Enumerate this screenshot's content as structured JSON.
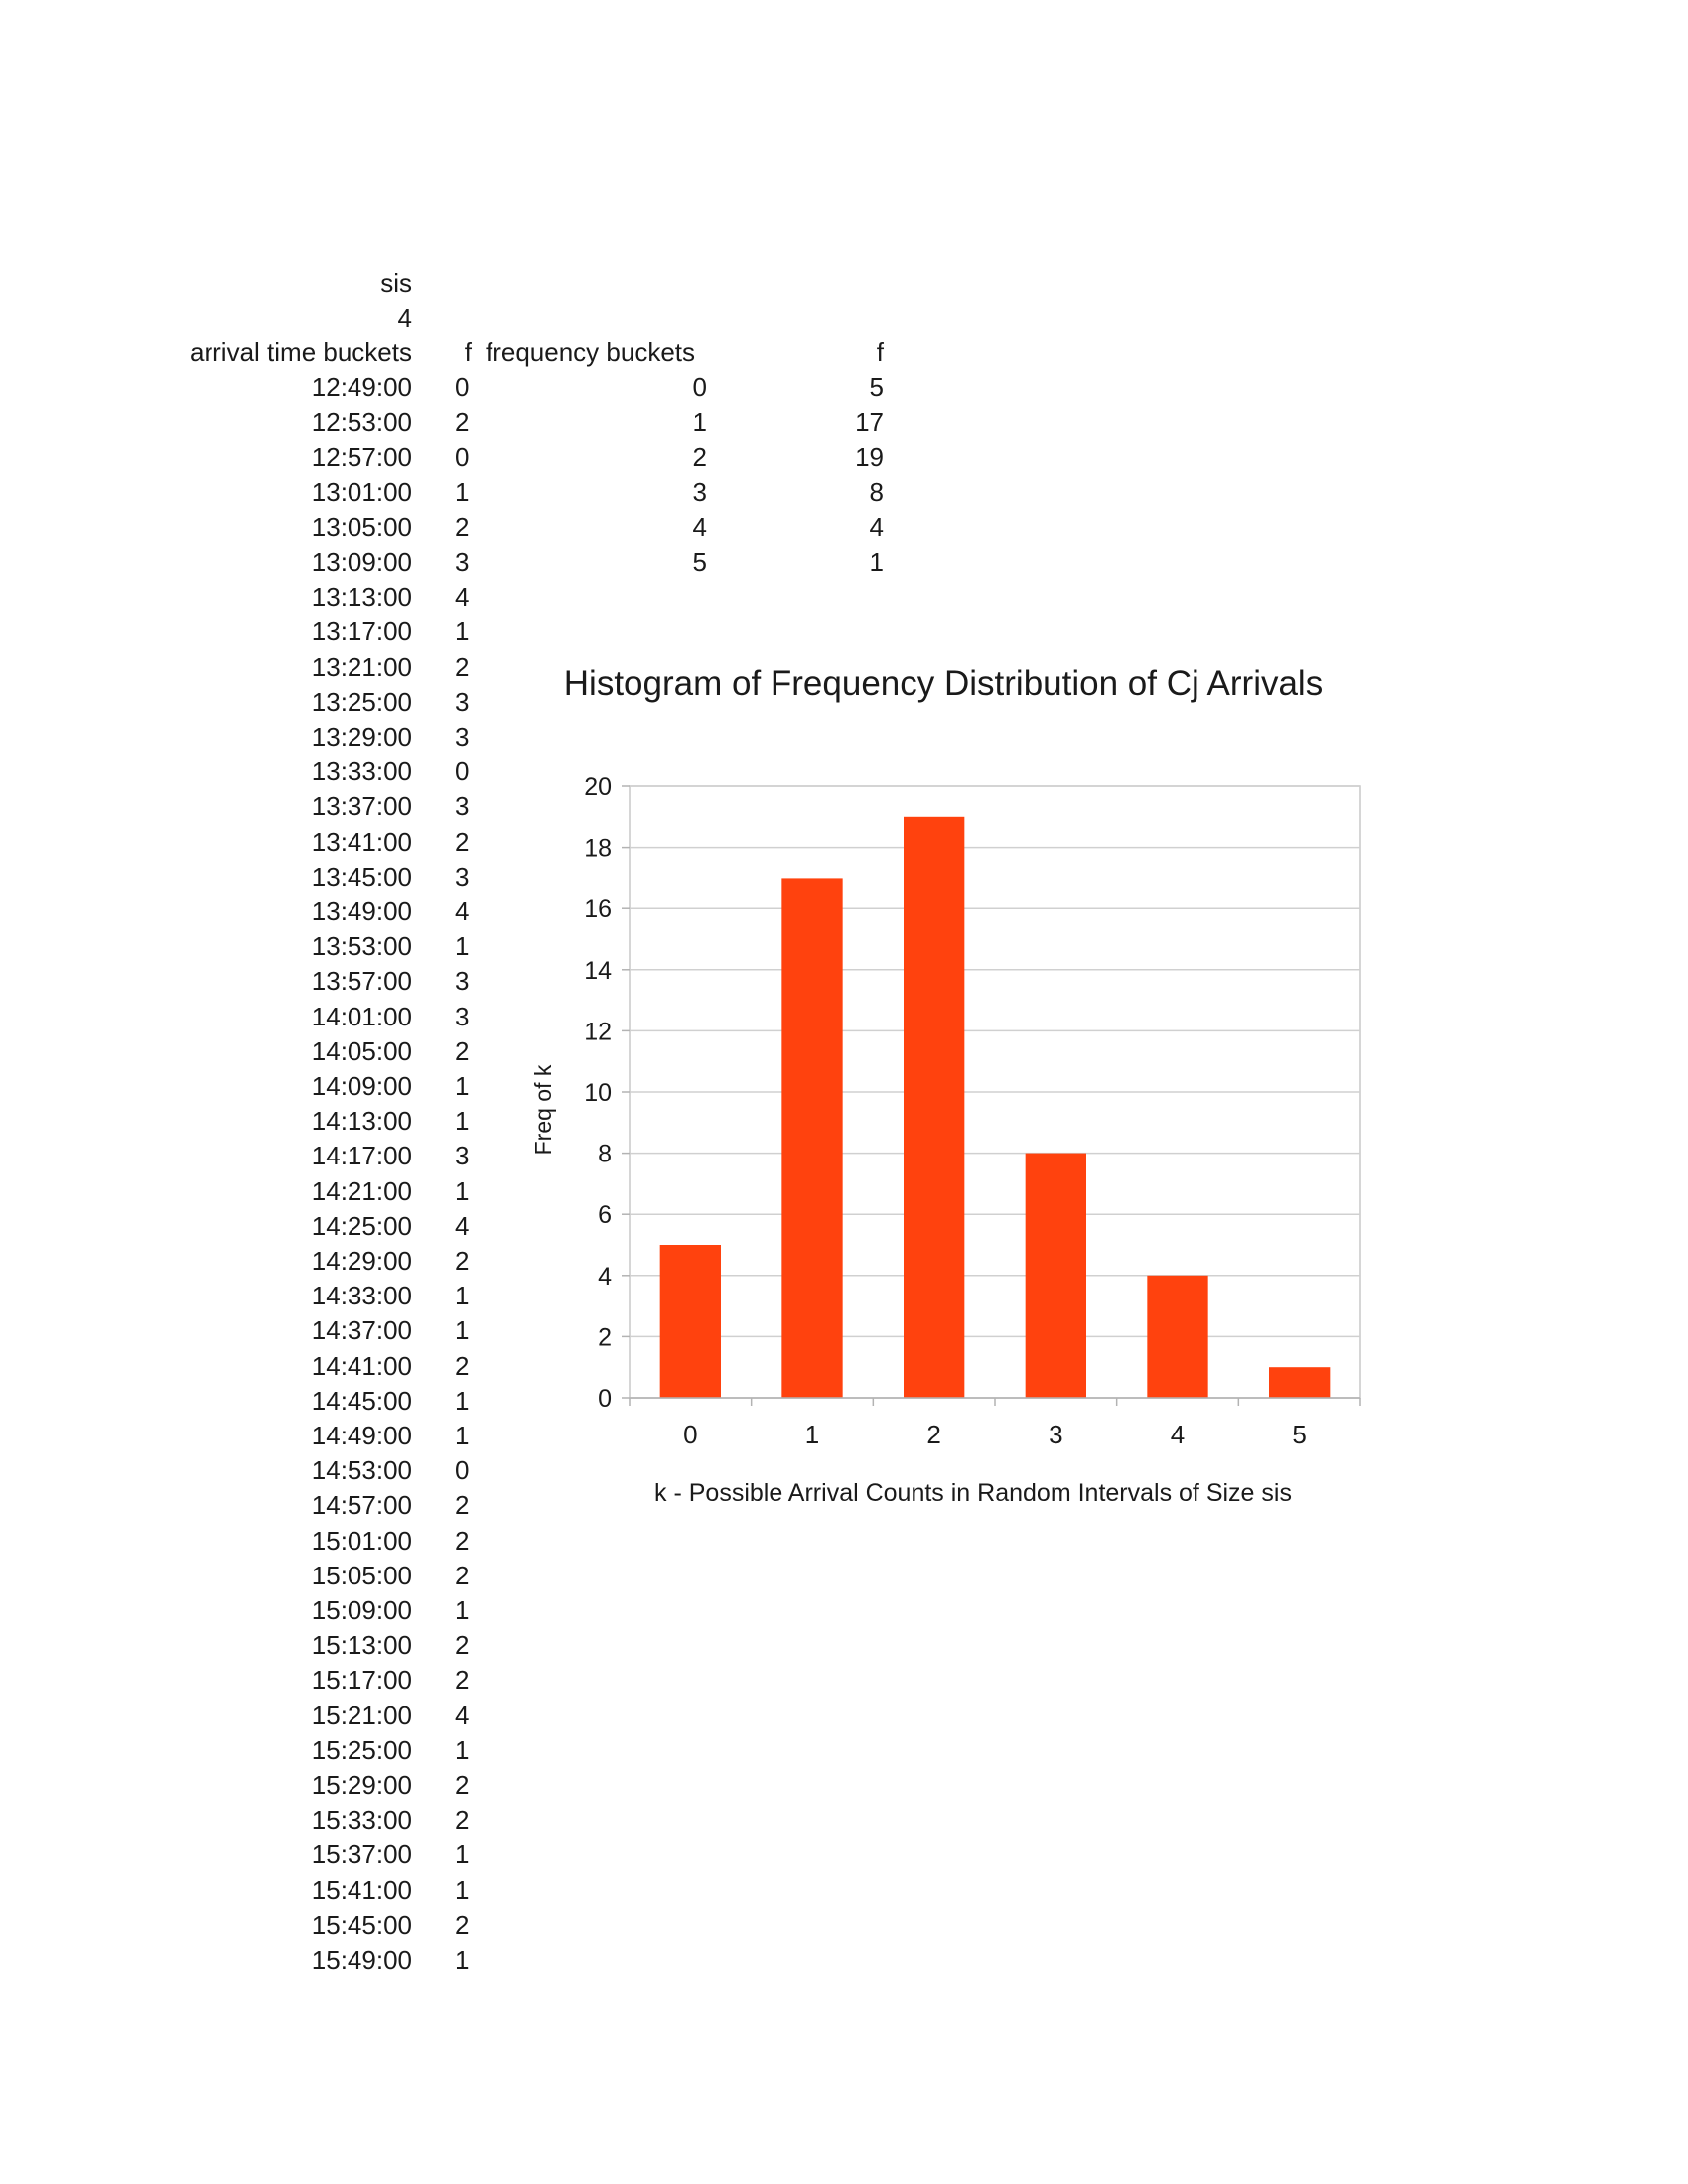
{
  "sheet": {
    "sis_label": "sis",
    "sis_value": "4",
    "col_arrival_header": "arrival time buckets",
    "col_f_header": "f",
    "col_freq_header": "frequency buckets",
    "col_f2_header": "f",
    "arrivals": [
      {
        "time": "12:49:00",
        "f": "0"
      },
      {
        "time": "12:53:00",
        "f": "2"
      },
      {
        "time": "12:57:00",
        "f": "0"
      },
      {
        "time": "13:01:00",
        "f": "1"
      },
      {
        "time": "13:05:00",
        "f": "2"
      },
      {
        "time": "13:09:00",
        "f": "3"
      },
      {
        "time": "13:13:00",
        "f": "4"
      },
      {
        "time": "13:17:00",
        "f": "1"
      },
      {
        "time": "13:21:00",
        "f": "2"
      },
      {
        "time": "13:25:00",
        "f": "3"
      },
      {
        "time": "13:29:00",
        "f": "3"
      },
      {
        "time": "13:33:00",
        "f": "0"
      },
      {
        "time": "13:37:00",
        "f": "3"
      },
      {
        "time": "13:41:00",
        "f": "2"
      },
      {
        "time": "13:45:00",
        "f": "3"
      },
      {
        "time": "13:49:00",
        "f": "4"
      },
      {
        "time": "13:53:00",
        "f": "1"
      },
      {
        "time": "13:57:00",
        "f": "3"
      },
      {
        "time": "14:01:00",
        "f": "3"
      },
      {
        "time": "14:05:00",
        "f": "2"
      },
      {
        "time": "14:09:00",
        "f": "1"
      },
      {
        "time": "14:13:00",
        "f": "1"
      },
      {
        "time": "14:17:00",
        "f": "3"
      },
      {
        "time": "14:21:00",
        "f": "1"
      },
      {
        "time": "14:25:00",
        "f": "4"
      },
      {
        "time": "14:29:00",
        "f": "2"
      },
      {
        "time": "14:33:00",
        "f": "1"
      },
      {
        "time": "14:37:00",
        "f": "1"
      },
      {
        "time": "14:41:00",
        "f": "2"
      },
      {
        "time": "14:45:00",
        "f": "1"
      },
      {
        "time": "14:49:00",
        "f": "1"
      },
      {
        "time": "14:53:00",
        "f": "0"
      },
      {
        "time": "14:57:00",
        "f": "2"
      },
      {
        "time": "15:01:00",
        "f": "2"
      },
      {
        "time": "15:05:00",
        "f": "2"
      },
      {
        "time": "15:09:00",
        "f": "1"
      },
      {
        "time": "15:13:00",
        "f": "2"
      },
      {
        "time": "15:17:00",
        "f": "2"
      },
      {
        "time": "15:21:00",
        "f": "4"
      },
      {
        "time": "15:25:00",
        "f": "1"
      },
      {
        "time": "15:29:00",
        "f": "2"
      },
      {
        "time": "15:33:00",
        "f": "2"
      },
      {
        "time": "15:37:00",
        "f": "1"
      },
      {
        "time": "15:41:00",
        "f": "1"
      },
      {
        "time": "15:45:00",
        "f": "2"
      },
      {
        "time": "15:49:00",
        "f": "1"
      }
    ],
    "freq_buckets": [
      {
        "k": "0",
        "f": "5"
      },
      {
        "k": "1",
        "f": "17"
      },
      {
        "k": "2",
        "f": "19"
      },
      {
        "k": "3",
        "f": "8"
      },
      {
        "k": "4",
        "f": "4"
      },
      {
        "k": "5",
        "f": "1"
      }
    ]
  },
  "chart_data": {
    "type": "bar",
    "title": "Histogram of Frequency Distribution of Cj Arrivals",
    "xlabel": "k - Possible Arrival Counts in Random Intervals of Size sis",
    "ylabel": "Freq of k",
    "categories": [
      "0",
      "1",
      "2",
      "3",
      "4",
      "5"
    ],
    "values": [
      5,
      17,
      19,
      8,
      4,
      1
    ],
    "ylim": [
      0,
      20
    ],
    "yticks": [
      0,
      2,
      4,
      6,
      8,
      10,
      12,
      14,
      16,
      18,
      20
    ],
    "grid": true,
    "legend": "none",
    "bar_color": "#ff420e"
  }
}
